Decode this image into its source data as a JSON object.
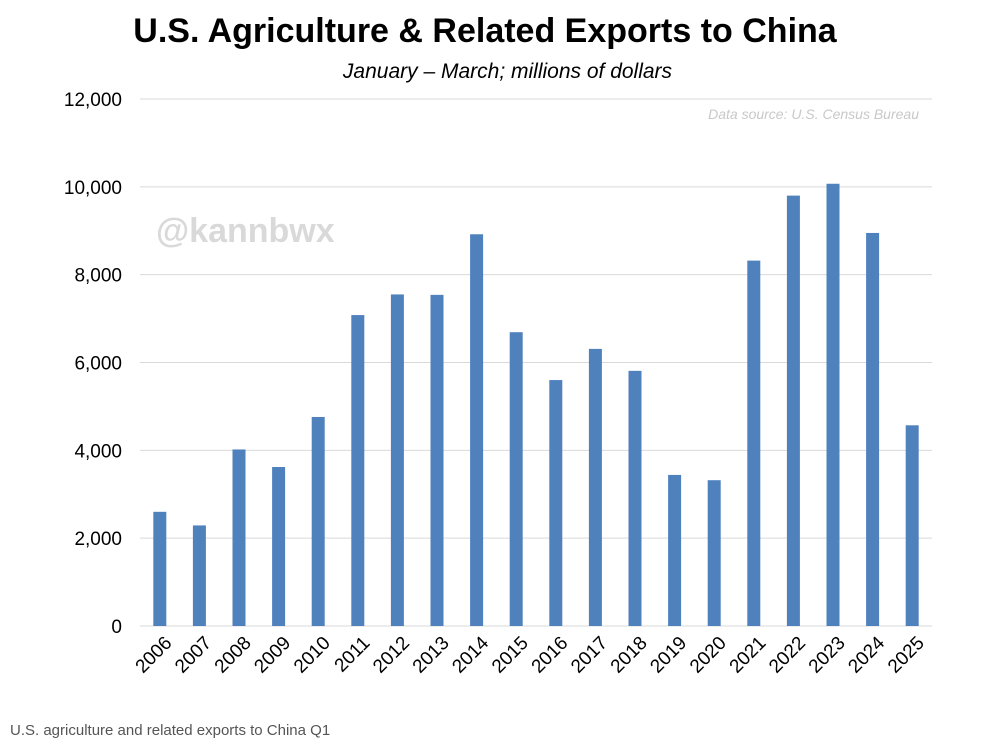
{
  "chart_data": {
    "type": "bar",
    "title": "U.S. Agriculture & Related Exports to China",
    "subtitle": "January – March; millions of dollars",
    "source_note": "Data source: U.S. Census Bureau",
    "watermark": "@kannbwx",
    "caption": "U.S. agriculture and related exports to China Q1",
    "categories": [
      "2006",
      "2007",
      "2008",
      "2009",
      "2010",
      "2011",
      "2012",
      "2013",
      "2014",
      "2015",
      "2016",
      "2017",
      "2018",
      "2019",
      "2020",
      "2021",
      "2022",
      "2023",
      "2024",
      "2025"
    ],
    "values": [
      2600,
      2290,
      4020,
      3620,
      4760,
      7080,
      7550,
      7540,
      8920,
      6690,
      5600,
      6310,
      5810,
      3440,
      3320,
      8320,
      9800,
      10070,
      8950,
      4570
    ],
    "ylim": [
      0,
      12000
    ],
    "yticks": [
      0,
      2000,
      4000,
      6000,
      8000,
      10000,
      12000
    ],
    "ytick_labels": [
      "0",
      "2,000",
      "4,000",
      "6,000",
      "8,000",
      "10,000",
      "12,000"
    ],
    "grid": true,
    "colors": {
      "bar": "#4f81bd",
      "grid": "#d9d9d9"
    }
  }
}
